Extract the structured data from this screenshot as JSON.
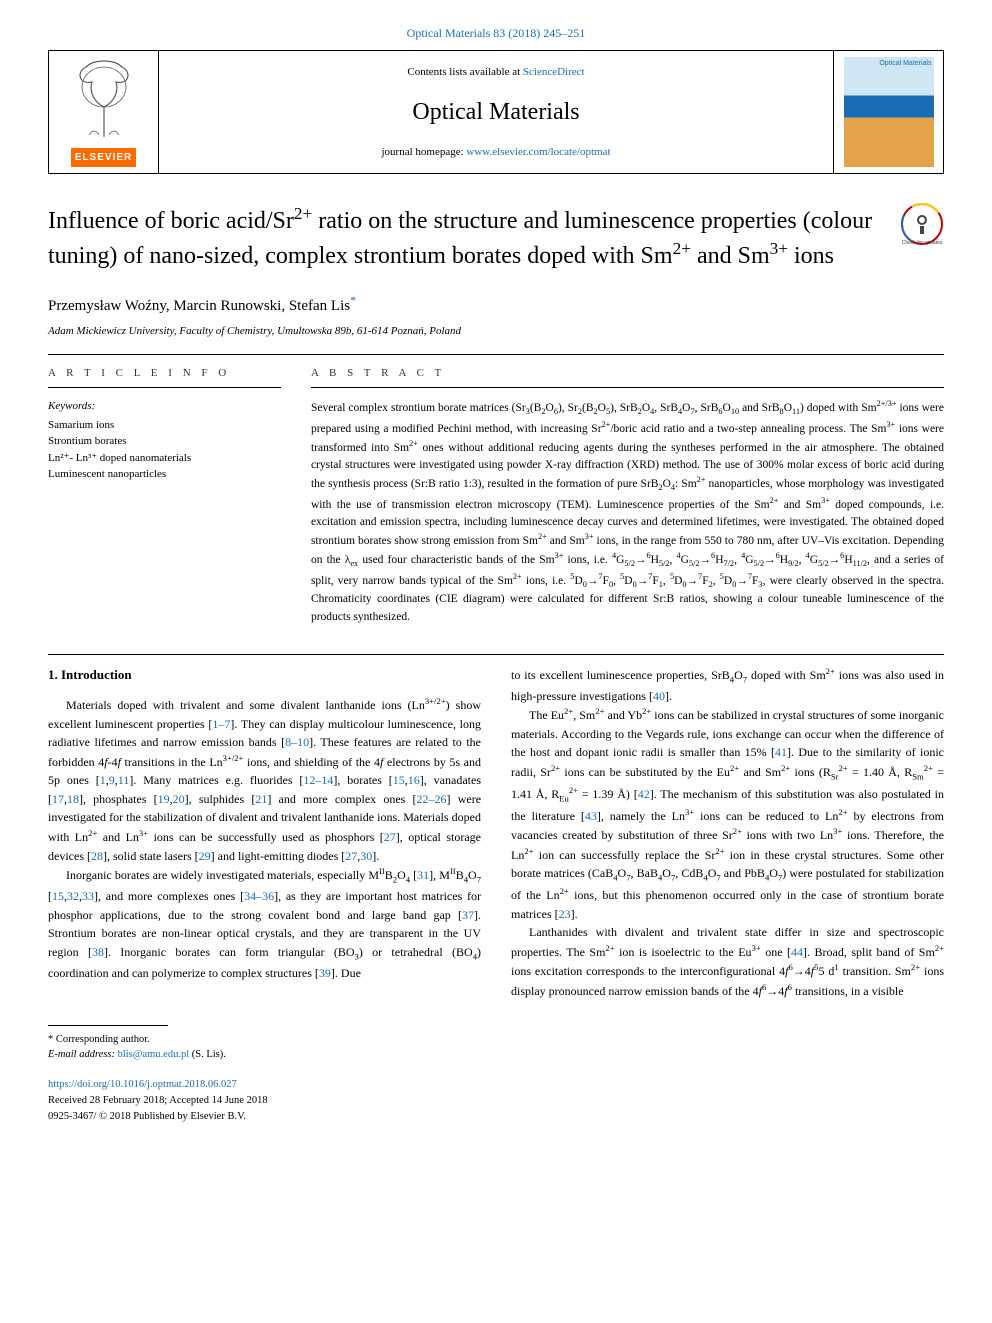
{
  "journal_ref": {
    "text": "Optical Materials 83 (2018) 245–251",
    "color": "#1a6db5"
  },
  "header": {
    "publisher": "ELSEVIER",
    "contents_prefix": "Contents lists available at ",
    "contents_link": "ScienceDirect",
    "journal_name": "Optical Materials",
    "homepage_prefix": "journal homepage: ",
    "homepage_link": "www.elsevier.com/locate/optmat"
  },
  "article": {
    "title_html": "Influence of boric acid/Sr<sup>2+</sup> ratio on the structure and luminescence properties (colour tuning) of nano-sized, complex strontium borates doped with Sm<sup>2+</sup> and Sm<sup>3+</sup> ions",
    "authors_html": "Przemysław Woźny, Marcin Runowski, Stefan Lis<span class='corr-mark'>*</span>",
    "affiliation": "Adam Mickiewicz University, Faculty of Chemistry, Umultowska 89b, 61-614 Poznań, Poland",
    "crossmark_alt": "Check for updates"
  },
  "info": {
    "label": "A R T I C L E  I N F O",
    "keywords_heading": "Keywords:",
    "keywords": [
      "Samarium ions",
      "Strontium borates",
      "Ln²⁺- Ln³⁺ doped nanomaterials",
      "Luminescent nanoparticles"
    ]
  },
  "abstract": {
    "label": "A B S T R A C T",
    "text_html": "Several complex strontium borate matrices (Sr<sub>3</sub>(B<sub>2</sub>O<sub>6</sub>), Sr<sub>2</sub>(B<sub>2</sub>O<sub>5</sub>), SrB<sub>2</sub>O<sub>4</sub>, SrB<sub>4</sub>O<sub>7</sub>, SrB<sub>6</sub>O<sub>10</sub> and SrB<sub>8</sub>O<sub>11</sub>) doped with Sm<sup>2+/3+</sup> ions were prepared using a modified Pechini method, with increasing Sr<sup>2+</sup>/boric acid ratio and a two-step annealing process. The Sm<sup>3+</sup> ions were transformed into Sm<sup>2+</sup> ones without additional reducing agents during the syntheses performed in the air atmosphere. The obtained crystal structures were investigated using powder X-ray diffraction (XRD) method. The use of 300% molar excess of boric acid during the synthesis process (Sr:B ratio 1:3), resulted in the formation of pure SrB<sub>2</sub>O<sub>4</sub>: Sm<sup>2+</sup> nanoparticles, whose morphology was investigated with the use of transmission electron microscopy (TEM). Luminescence properties of the Sm<sup>2+</sup> and Sm<sup>3+</sup> doped compounds, i.e. excitation and emission spectra, including luminescence decay curves and determined lifetimes, were investigated. The obtained doped strontium borates show strong emission from Sm<sup>2+</sup> and Sm<sup>3+</sup> ions, in the range from 550 to 780 nm, after UV–Vis excitation. Depending on the λ<sub>ex</sub> used four characteristic bands of the Sm<sup>3+</sup> ions, i.e. <sup>4</sup>G<sub>5/2</sub>→<sup>6</sup>H<sub>5/2</sub>, <sup>4</sup>G<sub>5/2</sub>→<sup>6</sup>H<sub>7/2</sub>, <sup>4</sup>G<sub>5/2</sub>→<sup>6</sup>H<sub>9/2</sub>, <sup>4</sup>G<sub>5/2</sub>→<sup>6</sup>H<sub>11/2</sub>, and a series of split, very narrow bands typical of the Sm<sup>2+</sup> ions, i.e. <sup>5</sup>D<sub>0</sub>→<sup>7</sup>F<sub>0</sub>, <sup>5</sup>D<sub>0</sub>→<sup>7</sup>F<sub>1</sub>, <sup>5</sup>D<sub>0</sub>→<sup>7</sup>F<sub>2</sub>, <sup>5</sup>D<sub>0</sub>→<sup>7</sup>F<sub>3</sub>, were clearly observed in the spectra. Chromaticity coordinates (CIE diagram) were calculated for different Sr:B ratios, showing a colour tuneable luminescence of the products synthesized."
  },
  "section_heading": "1. Introduction",
  "paragraphs": [
    "Materials doped with trivalent and some divalent lanthanide ions (Ln<sup>3+/2+</sup>) show excellent luminescent properties [<a class='ref'>1–7</a>]. They can display multicolour luminescence, long radiative lifetimes and narrow emission bands [<a class='ref'>8–10</a>]. These features are related to the forbidden 4<i>f</i>-4<i>f</i> transitions in the Ln<sup>3+/2+</sup> ions, and shielding of the 4<i>f</i> electrons by 5s and 5p ones [<a class='ref'>1</a>,<a class='ref'>9</a>,<a class='ref'>11</a>]. Many matrices e.g. fluorides [<a class='ref'>12–14</a>], borates [<a class='ref'>15</a>,<a class='ref'>16</a>], vanadates [<a class='ref'>17</a>,<a class='ref'>18</a>], phosphates [<a class='ref'>19</a>,<a class='ref'>20</a>], sulphides [<a class='ref'>21</a>] and more complex ones [<a class='ref'>22–26</a>] were investigated for the stabilization of divalent and trivalent lanthanide ions. Materials doped with Ln<sup>2+</sup> and Ln<sup>3+</sup> ions can be successfully used as phosphors [<a class='ref'>27</a>], optical storage devices [<a class='ref'>28</a>], solid state lasers [<a class='ref'>29</a>] and light-emitting diodes [<a class='ref'>27</a>,<a class='ref'>30</a>].",
    "Inorganic borates are widely investigated materials, especially M<sup>II</sup>B<sub>2</sub>O<sub>4</sub> [<a class='ref'>31</a>], M<sup>II</sup>B<sub>4</sub>O<sub>7</sub> [<a class='ref'>15</a>,<a class='ref'>32</a>,<a class='ref'>33</a>], and more complexes ones [<a class='ref'>34–36</a>], as they are important host matrices for phosphor applications, due to the strong covalent bond and large band gap [<a class='ref'>37</a>]. Strontium borates are non-linear optical crystals, and they are transparent in the UV region [<a class='ref'>38</a>]. Inorganic borates can form triangular (BO<sub>3</sub>) or tetrahedral (BO<sub>4</sub>) coordination and can polymerize to complex structures [<a class='ref'>39</a>]. Due",
    "to its excellent luminescence properties, SrB<sub>4</sub>O<sub>7</sub> doped with Sm<sup>2+</sup> ions was also used in high-pressure investigations [<a class='ref'>40</a>].",
    "The Eu<sup>2+</sup>, Sm<sup>2+</sup> and Yb<sup>2+</sup> ions can be stabilized in crystal structures of some inorganic materials. According to the Vegards rule, ions exchange can occur when the difference of the host and dopant ionic radii is smaller than 15% [<a class='ref'>41</a>]. Due to the similarity of ionic radii, Sr<sup>2+</sup> ions can be substituted by the Eu<sup>2+</sup> and Sm<sup>2+</sup> ions (R<sub>Sr</sub><sup>2+</sup> = 1.40 Å, R<sub>Sm</sub><sup>2+</sup> = 1.41 Å, R<sub>Eu</sub><sup>2+</sup> = 1.39 Å) [<a class='ref'>42</a>]. The mechanism of this substitution was also postulated in the literature [<a class='ref'>43</a>], namely the Ln<sup>3+</sup> ions can be reduced to Ln<sup>2+</sup> by electrons from vacancies created by substitution of three Sr<sup>2+</sup> ions with two Ln<sup>3+</sup> ions. Therefore, the Ln<sup>2+</sup> ion can successfully replace the Sr<sup>2+</sup> ion in these crystal structures. Some other borate matrices (CaB<sub>4</sub>O<sub>7</sub>, BaB<sub>4</sub>O<sub>7</sub>, CdB<sub>4</sub>O<sub>7</sub> and PbB<sub>4</sub>O<sub>7</sub>) were postulated for stabilization of the Ln<sup>2+</sup> ions, but this phenomenon occurred only in the case of strontium borate matrices [<a class='ref'>23</a>].",
    "Lanthanides with divalent and trivalent state differ in size and spectroscopic properties. The Sm<sup>2+</sup> ion is isoelectric to the Eu<sup>3+</sup> one [<a class='ref'>44</a>]. Broad, split band of Sm<sup>2+</sup> ions excitation corresponds to the interconfigurational 4<i>f</i><sup>6</sup>→4<i>f</i><sup>5</sup>5 d<sup>1</sup> transition. Sm<sup>2+</sup> ions display pronounced narrow emission bands of the 4<i>f</i><sup>6</sup>→4<i>f</i><sup>6</sup> transitions, in a visible"
  ],
  "footer": {
    "corr_note": "* Corresponding author.",
    "email_label": "E-mail address: ",
    "email": "blis@amu.edu.pl",
    "email_suffix": " (S. Lis).",
    "doi": "https://doi.org/10.1016/j.optmat.2018.06.027",
    "received": "Received 28 February 2018; Accepted 14 June 2018",
    "copyright": "0925-3467/ © 2018 Published by Elsevier B.V."
  },
  "colors": {
    "link": "#1a6db5",
    "elsevier_orange": "#ff6a00"
  }
}
